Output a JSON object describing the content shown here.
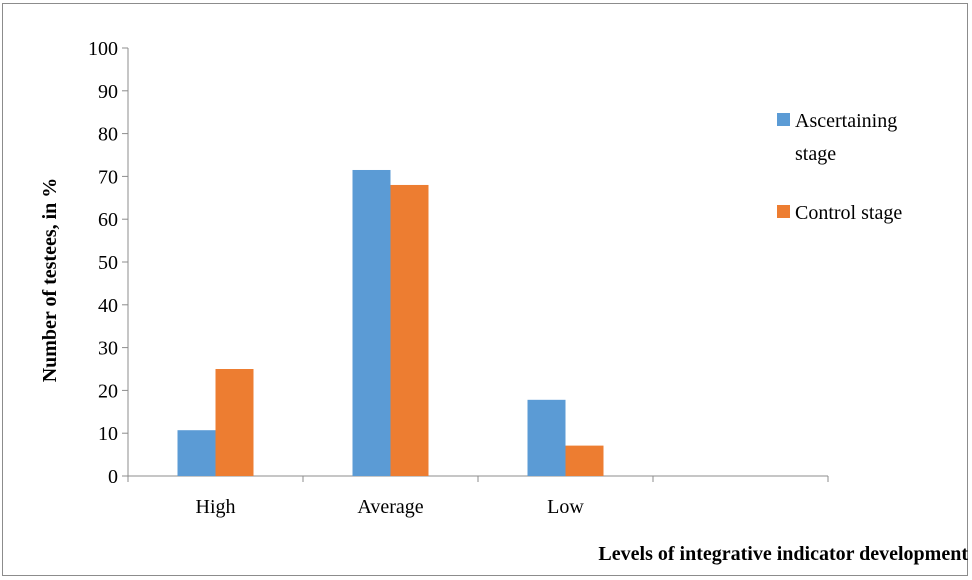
{
  "chart_data": {
    "type": "bar",
    "categories": [
      "High",
      "Average",
      "Low",
      ""
    ],
    "series": [
      {
        "name": "Ascertaining stage",
        "name_lines": [
          "Ascertaining",
          "stage"
        ],
        "color": "#5b9bd5",
        "values": [
          10.7,
          71.5,
          17.8,
          null
        ]
      },
      {
        "name": "Control stage",
        "name_lines": [
          "Control stage"
        ],
        "color": "#ed7d31",
        "values": [
          25,
          68,
          7.1,
          null
        ]
      }
    ],
    "title": "",
    "xlabel": "Levels of integrative indicator development",
    "ylabel": "Number of testees, in %",
    "ylim": [
      0,
      100
    ],
    "yticks": [
      0,
      10,
      20,
      30,
      40,
      50,
      60,
      70,
      80,
      90,
      100
    ],
    "grid": false,
    "legend_position": "right"
  }
}
